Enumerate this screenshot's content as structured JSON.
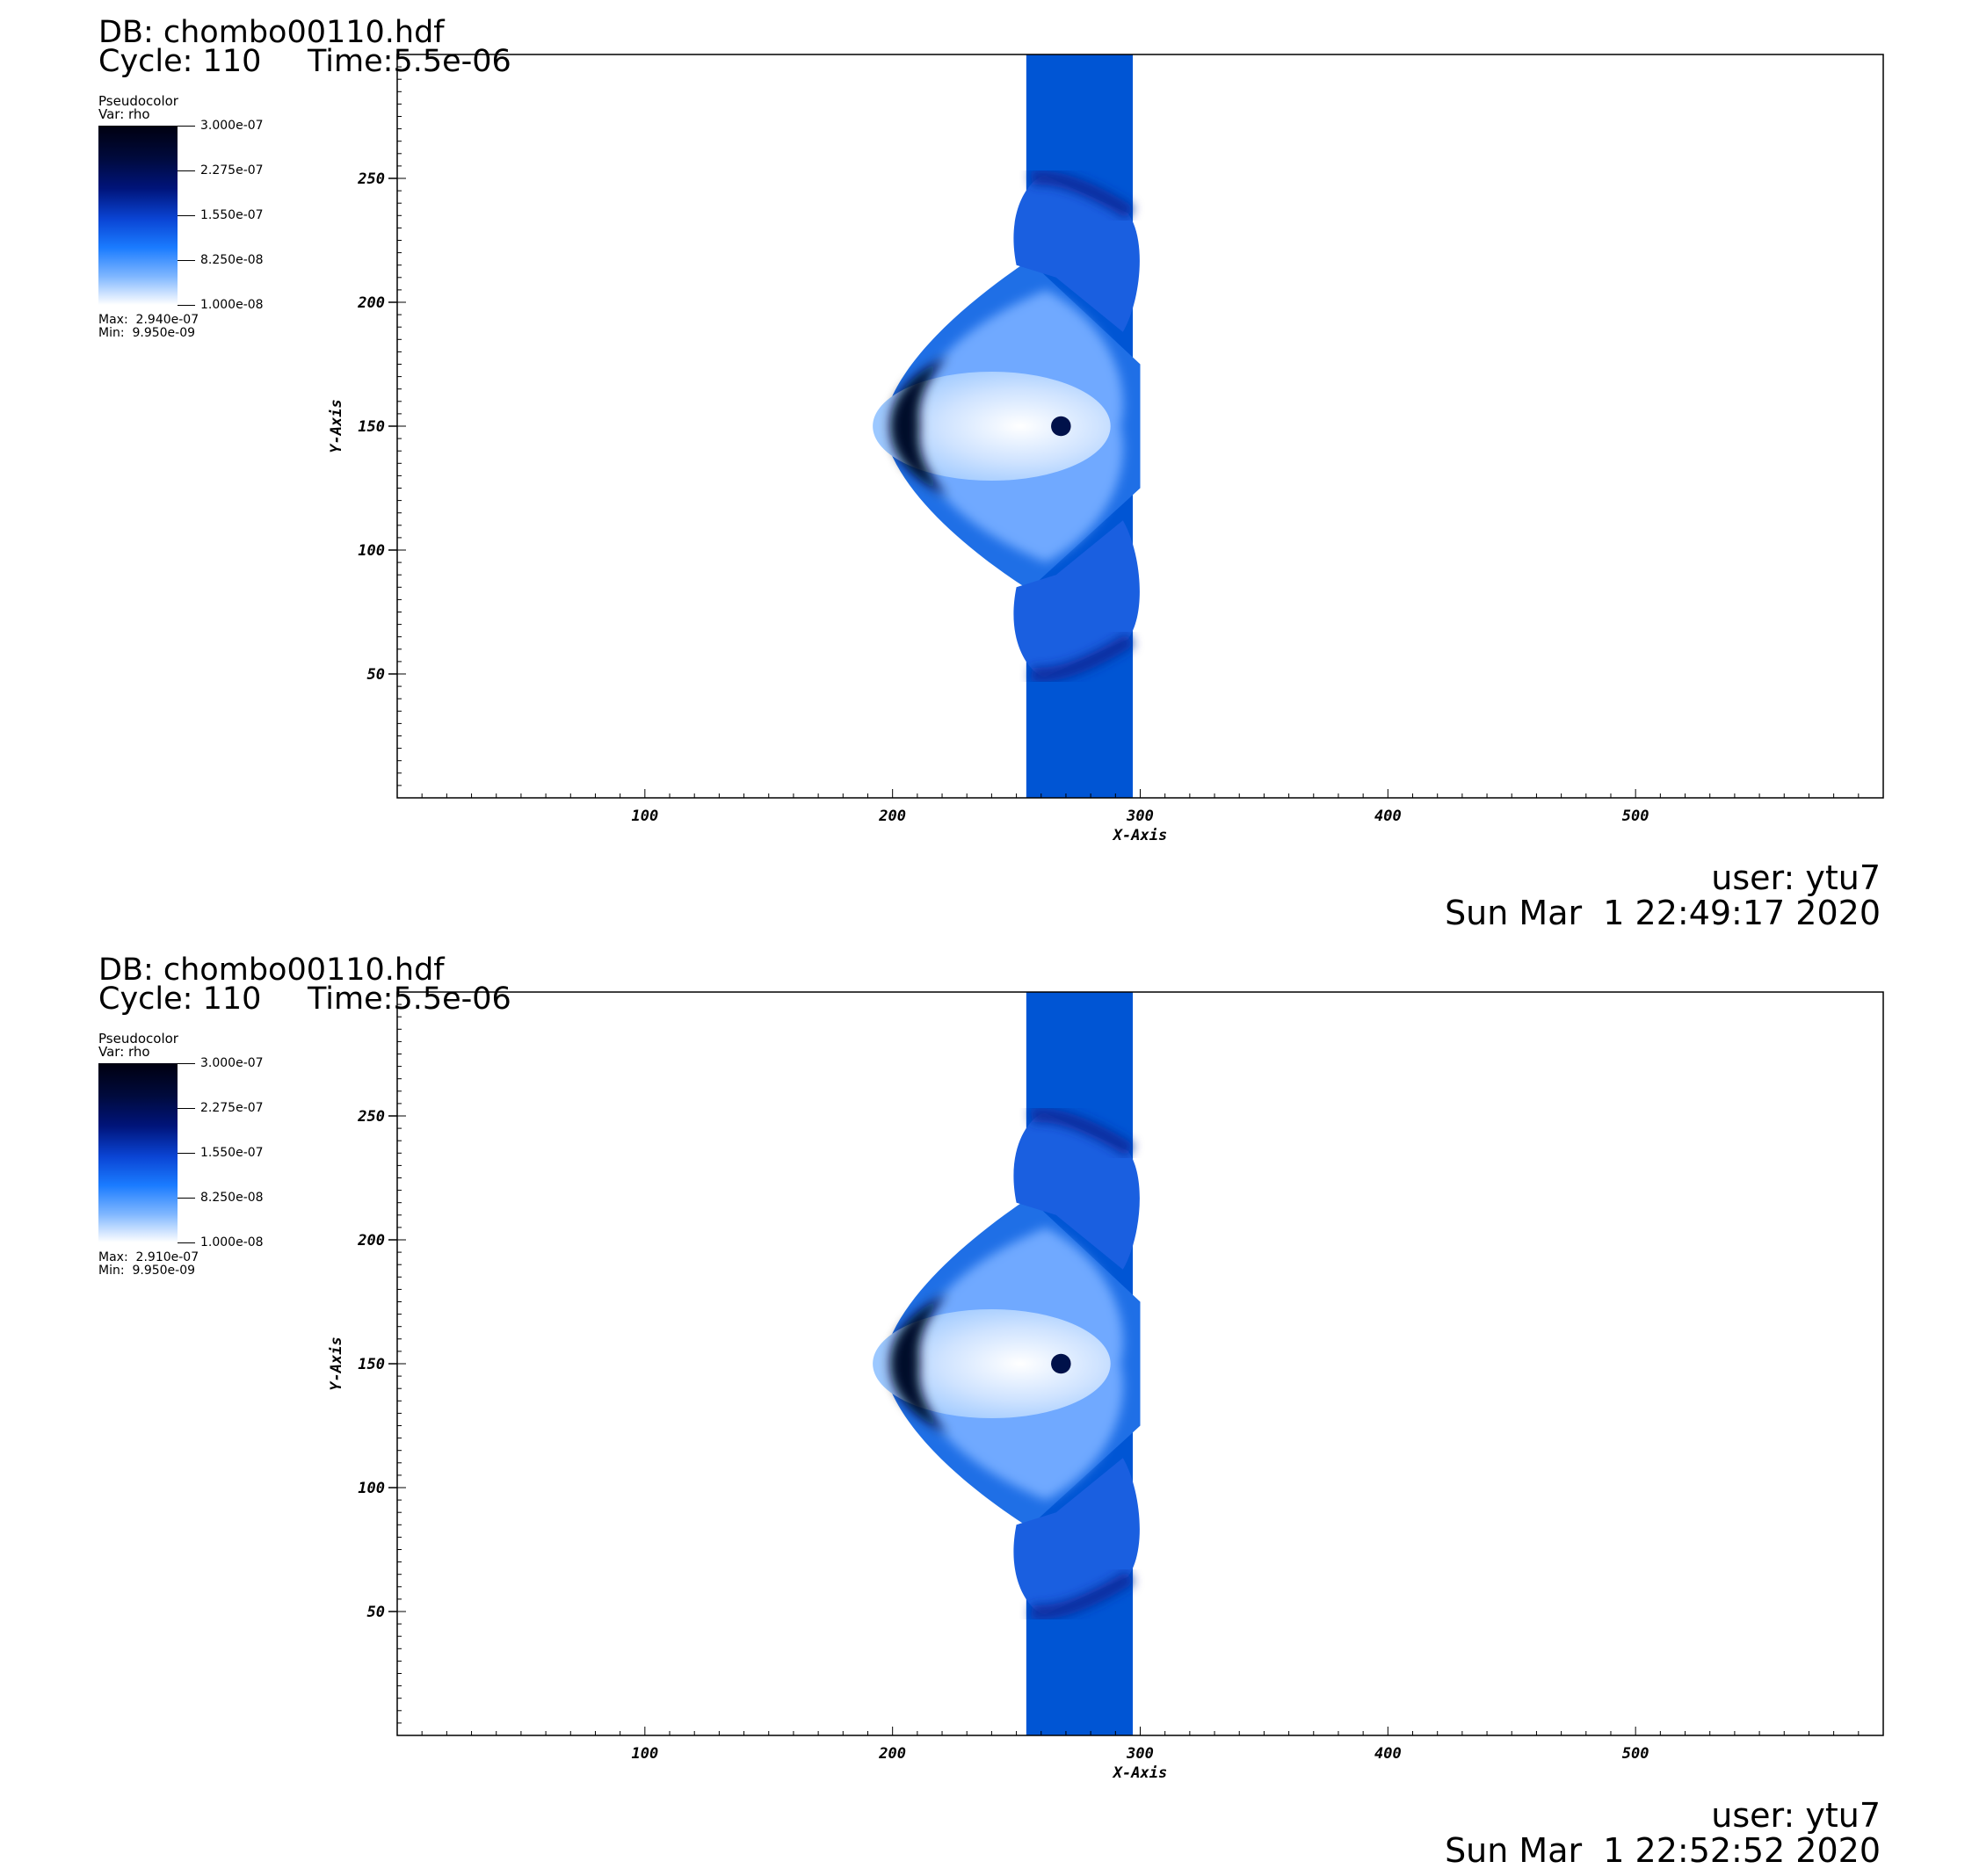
{
  "panels": [
    {
      "db_label": "DB: chombo00110.hdf",
      "cycle_label": "Cycle: 110",
      "time_label": "Time:5.5e-06",
      "legend": {
        "title": "Pseudocolor",
        "var": "Var: rho",
        "ticks": [
          "3.000e-07",
          "2.275e-07",
          "1.550e-07",
          "8.250e-08",
          "1.000e-08"
        ],
        "max": "Max:  2.940e-07",
        "min": "Min:  9.950e-09"
      },
      "user": "user: ytu7",
      "date": "Sun Mar  1 22:49:17 2020"
    },
    {
      "db_label": "DB: chombo00110.hdf",
      "cycle_label": "Cycle: 110",
      "time_label": "Time:5.5e-06",
      "legend": {
        "title": "Pseudocolor",
        "var": "Var: rho",
        "ticks": [
          "3.000e-07",
          "2.275e-07",
          "1.550e-07",
          "8.250e-08",
          "1.000e-08"
        ],
        "max": "Max:  2.910e-07",
        "min": "Min:  9.950e-09"
      },
      "user": "user: ytu7",
      "date": "Sun Mar  1 22:52:52 2020"
    }
  ],
  "chart_data": [
    {
      "type": "heatmap",
      "variable": "rho",
      "xlabel": "X-Axis",
      "ylabel": "Y-Axis",
      "xlim": [
        0,
        600
      ],
      "ylim": [
        0,
        300
      ],
      "x_ticks": [
        100,
        200,
        300,
        400,
        500
      ],
      "y_ticks": [
        50,
        100,
        150,
        200,
        250
      ],
      "color_range": [
        1e-08,
        3e-07
      ],
      "max": 2.94e-07,
      "min": 9.95e-09
    },
    {
      "type": "heatmap",
      "variable": "rho",
      "xlabel": "X-Axis",
      "ylabel": "Y-Axis",
      "xlim": [
        0,
        600
      ],
      "ylim": [
        0,
        300
      ],
      "x_ticks": [
        100,
        200,
        300,
        400,
        500
      ],
      "y_ticks": [
        50,
        100,
        150,
        200,
        250
      ],
      "color_range": [
        1e-08,
        3e-07
      ],
      "max": 2.91e-07,
      "min": 9.95e-09
    }
  ],
  "colors": {
    "band": "#0055d4",
    "dense": "#00082a",
    "mid": "#1f6fe6",
    "light": "#9cc8ff"
  }
}
